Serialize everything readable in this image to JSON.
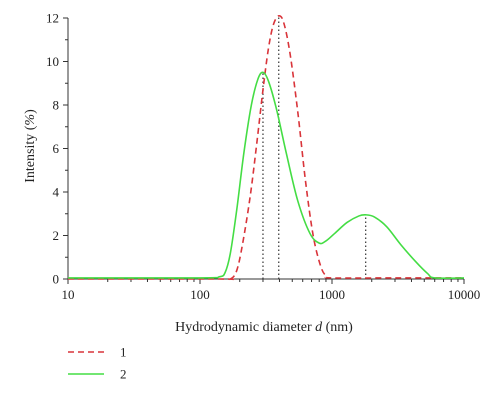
{
  "chart_data": {
    "type": "line",
    "x_scale": "log",
    "xlim": [
      10,
      10000
    ],
    "ylim": [
      0,
      12
    ],
    "x_ticks": [
      "10",
      "100",
      "1000",
      "10000"
    ],
    "y_ticks": [
      "0",
      "2",
      "4",
      "6",
      "8",
      "10",
      "12"
    ],
    "xlabel_prefix": "Hydrodynamic diameter ",
    "xlabel_var": "d",
    "xlabel_suffix": " (nm)",
    "ylabel_prefix": "Intensity (",
    "ylabel_unit": "%",
    "ylabel_suffix": ")",
    "grid": false,
    "legend_position": "bottom-left",
    "series": [
      {
        "name": "1",
        "color": "#d9343a",
        "style": "dashed",
        "points": [
          [
            10,
            0
          ],
          [
            140,
            0
          ],
          [
            170,
            0
          ],
          [
            190,
            0.4
          ],
          [
            210,
            1.6
          ],
          [
            240,
            3.8
          ],
          [
            270,
            6.3
          ],
          [
            300,
            8.7
          ],
          [
            330,
            10.6
          ],
          [
            360,
            11.7
          ],
          [
            395,
            12.1
          ],
          [
            430,
            11.8
          ],
          [
            480,
            10.4
          ],
          [
            550,
            7.7
          ],
          [
            630,
            4.5
          ],
          [
            720,
            2.0
          ],
          [
            820,
            0.6
          ],
          [
            900,
            0.15
          ],
          [
            1000,
            0.05
          ],
          [
            3000,
            0.05
          ],
          [
            10000,
            0.05
          ]
        ]
      },
      {
        "name": "2",
        "color": "#44dd44",
        "style": "solid",
        "points": [
          [
            10,
            0.05
          ],
          [
            100,
            0.05
          ],
          [
            140,
            0.1
          ],
          [
            155,
            0.3
          ],
          [
            170,
            1.2
          ],
          [
            190,
            3.2
          ],
          [
            215,
            5.8
          ],
          [
            245,
            8.0
          ],
          [
            275,
            9.2
          ],
          [
            300,
            9.5
          ],
          [
            330,
            9.1
          ],
          [
            380,
            7.8
          ],
          [
            450,
            5.8
          ],
          [
            550,
            3.6
          ],
          [
            680,
            2.1
          ],
          [
            800,
            1.65
          ],
          [
            900,
            1.75
          ],
          [
            1050,
            2.1
          ],
          [
            1300,
            2.6
          ],
          [
            1600,
            2.9
          ],
          [
            1800,
            2.95
          ],
          [
            2100,
            2.85
          ],
          [
            2600,
            2.4
          ],
          [
            3300,
            1.6
          ],
          [
            4300,
            0.8
          ],
          [
            5300,
            0.25
          ],
          [
            6000,
            0.05
          ],
          [
            10000,
            0.05
          ]
        ]
      }
    ],
    "reference_lines": [
      300,
      395,
      1800
    ]
  }
}
